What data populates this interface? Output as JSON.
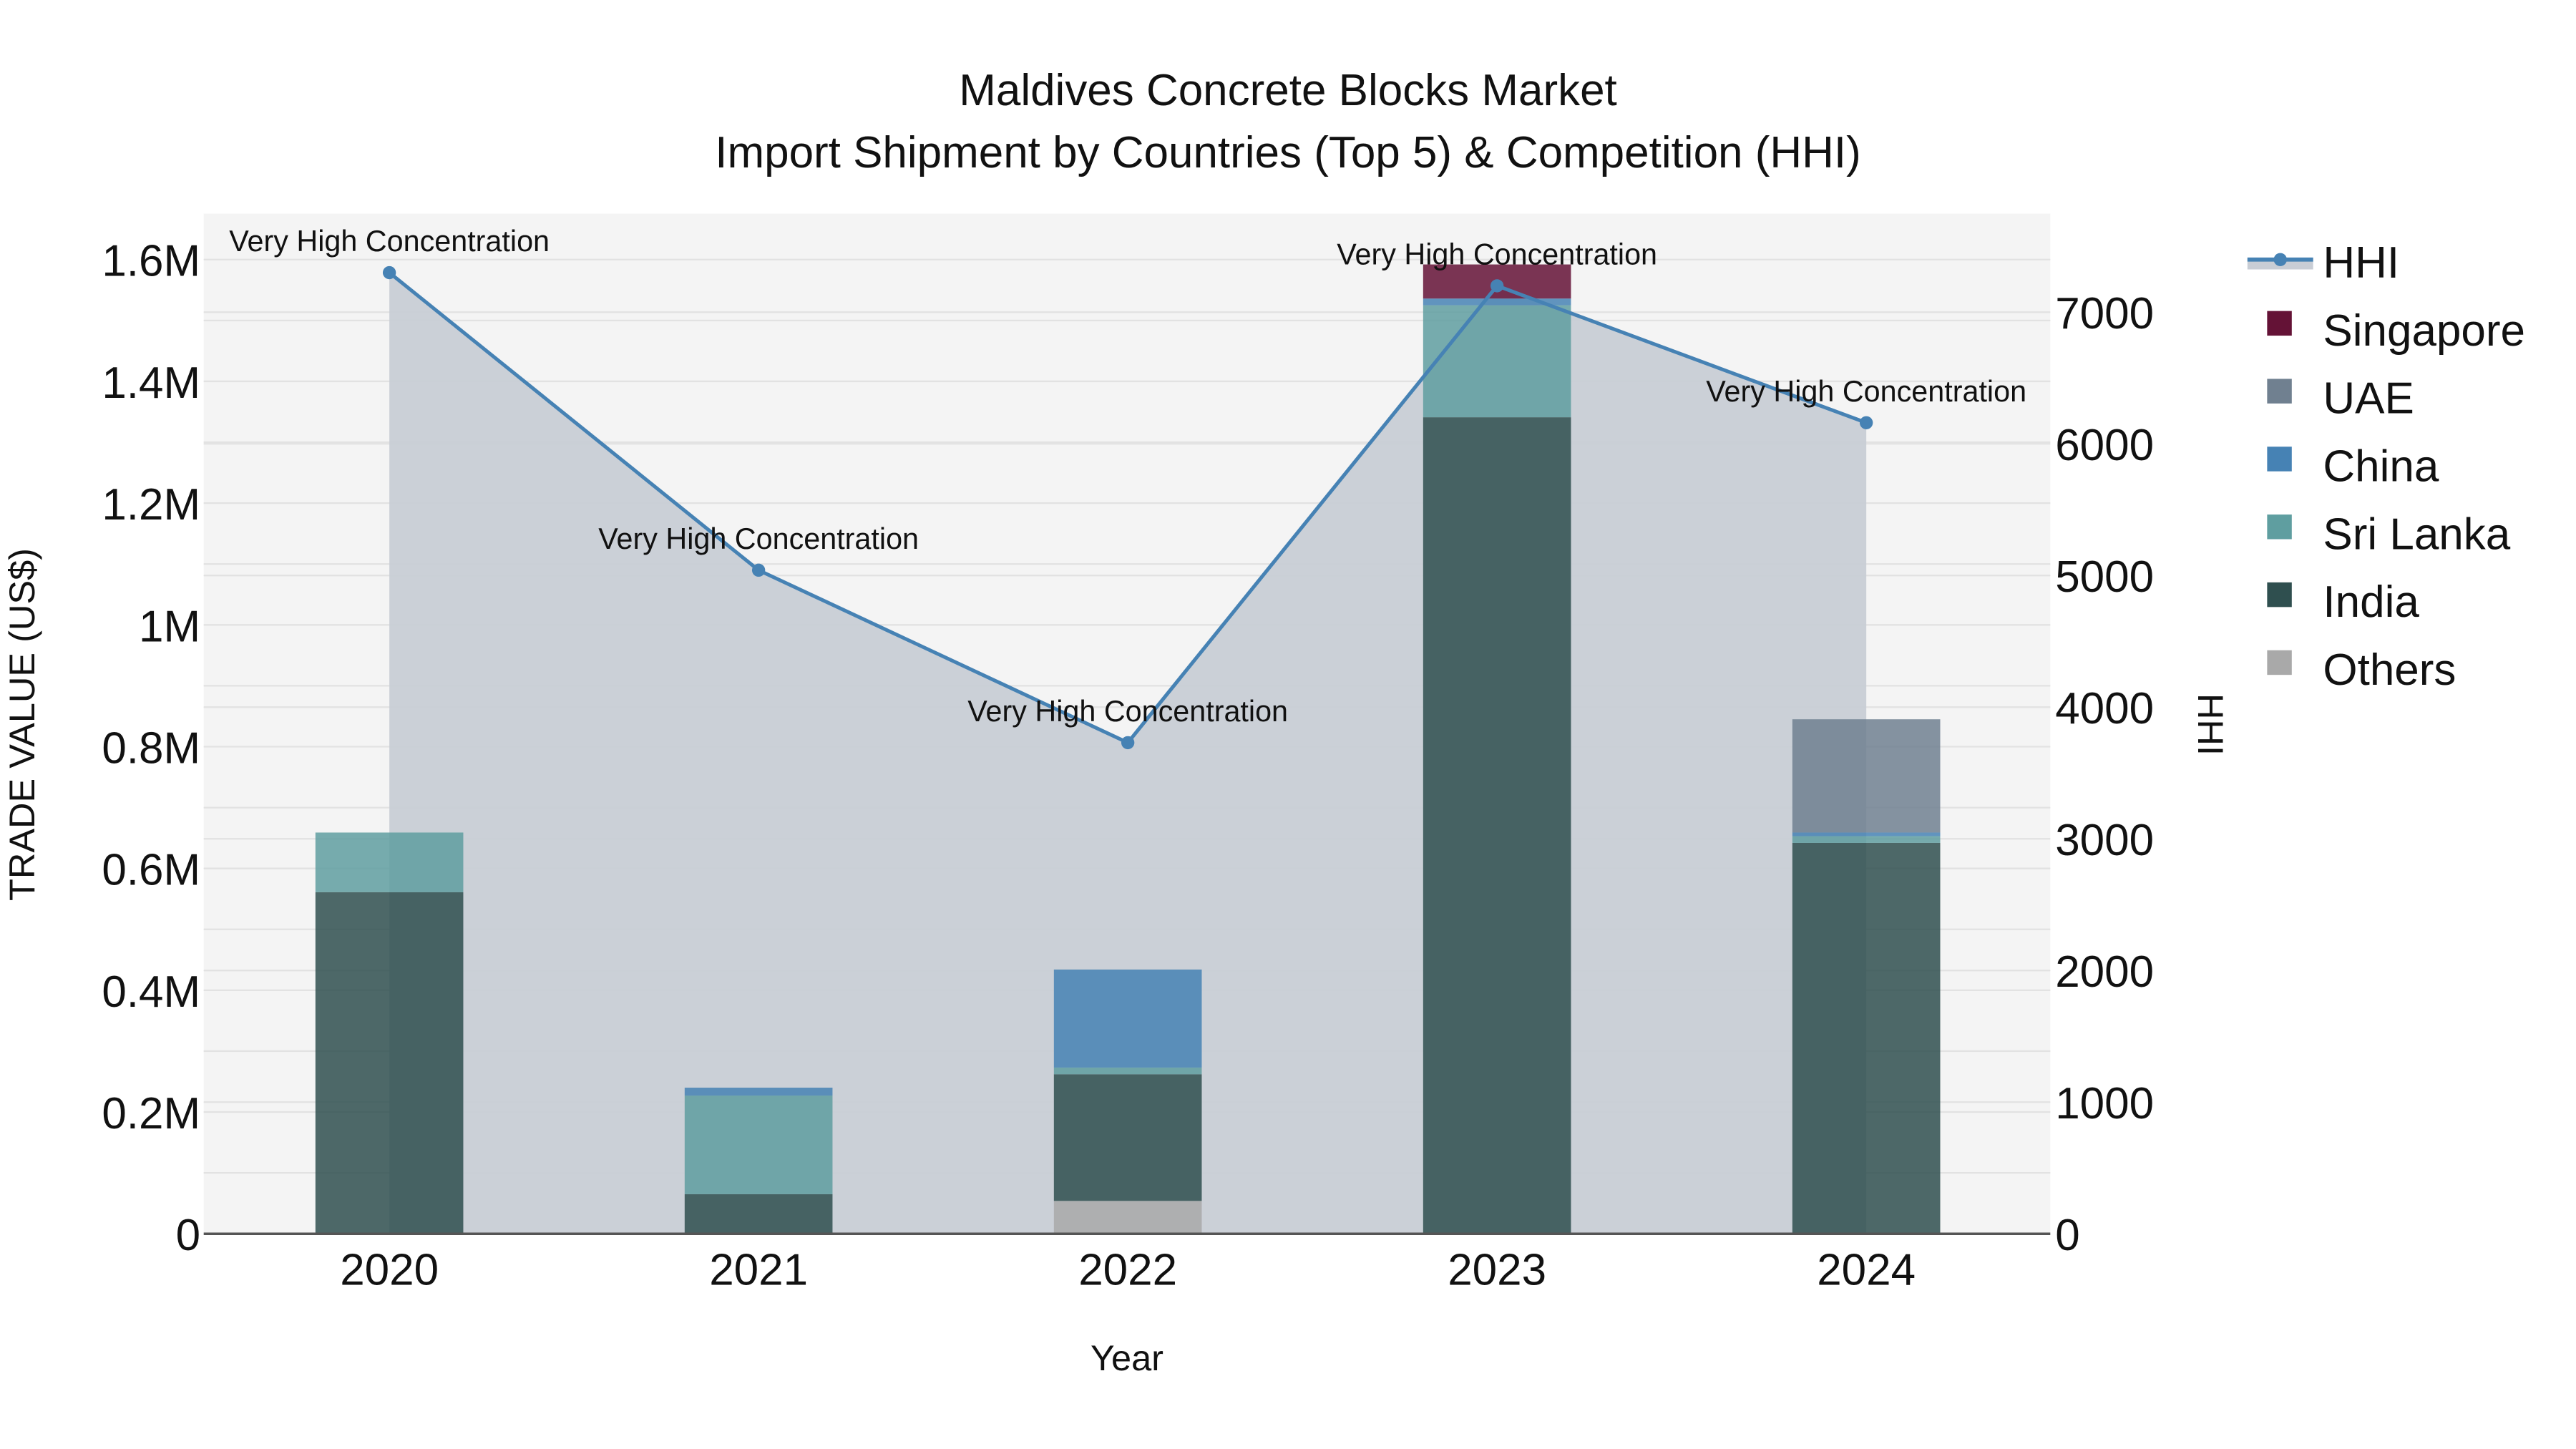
{
  "chart_data": {
    "type": "bar",
    "stacked": true,
    "title": "Maldives Concrete Blocks Market",
    "subtitle": "Import Shipment by Countries (Top 5) & Competition (HHI)",
    "xlabel": "Year",
    "ylabel": "TRADE VALUE (US$)",
    "y2label": "HHI",
    "categories": [
      "2020",
      "2021",
      "2022",
      "2023",
      "2024"
    ],
    "ylim": [
      0,
      1680000
    ],
    "y_ticks": [
      {
        "value": 0,
        "label": "0"
      },
      {
        "value": 200000,
        "label": "0.2M"
      },
      {
        "value": 400000,
        "label": "0.4M"
      },
      {
        "value": 600000,
        "label": "0.6M"
      },
      {
        "value": 800000,
        "label": "0.8M"
      },
      {
        "value": 1000000,
        "label": "1M"
      },
      {
        "value": 1200000,
        "label": "1.2M"
      },
      {
        "value": 1400000,
        "label": "1.4M"
      },
      {
        "value": 1600000,
        "label": "1.6M"
      }
    ],
    "y2lim": [
      0,
      7750
    ],
    "y2_ticks": [
      {
        "value": 0,
        "label": "0"
      },
      {
        "value": 1000,
        "label": "1000"
      },
      {
        "value": 2000,
        "label": "2000"
      },
      {
        "value": 3000,
        "label": "3000"
      },
      {
        "value": 4000,
        "label": "4000"
      },
      {
        "value": 5000,
        "label": "5000"
      },
      {
        "value": 6000,
        "label": "6000"
      },
      {
        "value": 7000,
        "label": "7000"
      }
    ],
    "series": [
      {
        "name": "Others",
        "color": "#A9A9A9",
        "values": [
          0,
          0,
          54000,
          0,
          0
        ]
      },
      {
        "name": "India",
        "color": "#2F4F4F",
        "values": [
          561000,
          65000,
          208000,
          1341000,
          642000
        ]
      },
      {
        "name": "Sri Lanka",
        "color": "#5F9EA0",
        "values": [
          98000,
          162000,
          11000,
          184000,
          11000
        ]
      },
      {
        "name": "China",
        "color": "#4682B4",
        "values": [
          0,
          13000,
          161000,
          11000,
          6000
        ]
      },
      {
        "name": "UAE",
        "color": "#708090",
        "values": [
          0,
          0,
          0,
          0,
          186000
        ]
      },
      {
        "name": "Singapore",
        "color": "#641236",
        "values": [
          0,
          0,
          0,
          56000,
          0
        ]
      }
    ],
    "line_series": {
      "name": "HHI",
      "axis": "y2",
      "color": "#4682B4",
      "fill_color": "#C8CDD5",
      "values": [
        7300,
        5040,
        3730,
        7200,
        6160
      ],
      "annotations": [
        "Very High Concentration",
        "Very High Concentration",
        "Very High Concentration",
        "Very High Concentration",
        "Very High Concentration"
      ]
    },
    "legend": {
      "position": "right",
      "items": [
        "HHI",
        "Singapore",
        "UAE",
        "China",
        "Sri Lanka",
        "India",
        "Others"
      ]
    },
    "grid": true,
    "plot_bgcolor": "#F4F4F4"
  }
}
